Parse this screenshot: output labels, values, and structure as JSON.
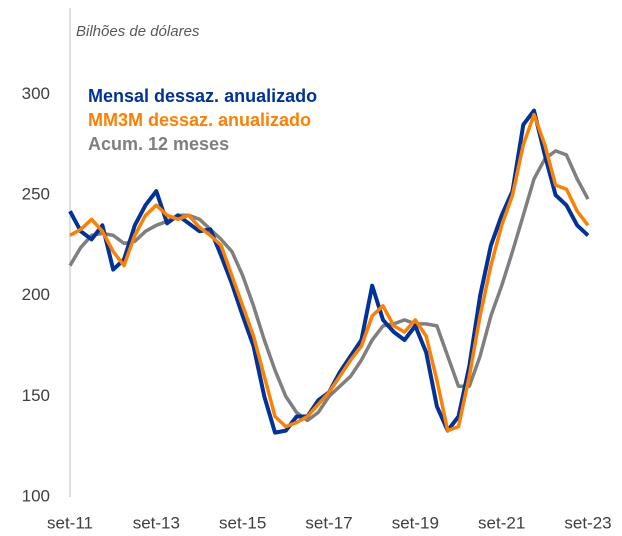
{
  "chart_data": {
    "type": "line",
    "subtitle": "Bilhões de dólares",
    "x": [
      2011.667,
      2011.917,
      2012.167,
      2012.417,
      2012.667,
      2012.917,
      2013.167,
      2013.417,
      2013.667,
      2013.917,
      2014.167,
      2014.417,
      2014.667,
      2014.917,
      2015.167,
      2015.417,
      2015.667,
      2015.917,
      2016.167,
      2016.417,
      2016.667,
      2016.917,
      2017.167,
      2017.417,
      2017.667,
      2017.917,
      2018.167,
      2018.417,
      2018.667,
      2018.917,
      2019.167,
      2019.417,
      2019.667,
      2019.917,
      2020.167,
      2020.417,
      2020.667,
      2020.917,
      2021.167,
      2021.417,
      2021.667,
      2021.917,
      2022.167,
      2022.417,
      2022.667,
      2022.917,
      2023.167,
      2023.417,
      2023.667
    ],
    "series": [
      {
        "name": "Mensal dessaz. anualizado",
        "color": "#003399",
        "values": [
          242,
          232,
          228,
          235,
          213,
          218,
          235,
          245,
          252,
          236,
          240,
          236,
          232,
          233,
          220,
          206,
          190,
          175,
          150,
          132,
          133,
          140,
          140,
          148,
          152,
          162,
          170,
          178,
          205,
          188,
          182,
          178,
          185,
          172,
          145,
          133,
          140,
          165,
          200,
          225,
          240,
          252,
          285,
          292,
          270,
          250,
          245,
          235,
          230
        ]
      },
      {
        "name": "MM3M dessaz. anualizado",
        "color": "#ff8000",
        "values": [
          230,
          233,
          238,
          232,
          222,
          215,
          230,
          240,
          245,
          240,
          238,
          240,
          234,
          230,
          225,
          210,
          195,
          180,
          160,
          140,
          135,
          137,
          140,
          146,
          152,
          160,
          168,
          175,
          190,
          195,
          185,
          182,
          188,
          180,
          158,
          133,
          135,
          160,
          190,
          215,
          235,
          250,
          275,
          290,
          275,
          255,
          253,
          242,
          235
        ]
      },
      {
        "name": "Acum. 12 meses",
        "color": "#7f7f7f",
        "values": [
          215,
          224,
          230,
          231,
          230,
          226,
          227,
          232,
          235,
          237,
          240,
          240,
          238,
          233,
          228,
          222,
          210,
          195,
          178,
          163,
          150,
          142,
          138,
          142,
          150,
          155,
          160,
          168,
          178,
          185,
          186,
          188,
          186,
          186,
          185,
          170,
          155,
          155,
          170,
          190,
          205,
          222,
          240,
          258,
          268,
          272,
          270,
          258,
          248
        ]
      }
    ],
    "xlim": [
      2011.667,
      2023.667
    ],
    "xticks": [
      {
        "value": 2011.667,
        "label": "set-11"
      },
      {
        "value": 2013.667,
        "label": "set-13"
      },
      {
        "value": 2015.667,
        "label": "set-15"
      },
      {
        "value": 2017.667,
        "label": "set-17"
      },
      {
        "value": 2019.667,
        "label": "set-19"
      },
      {
        "value": 2021.667,
        "label": "set-21"
      },
      {
        "value": 2023.667,
        "label": "set-23"
      }
    ],
    "ylim": [
      100,
      340
    ],
    "yticks": [
      100,
      150,
      200,
      250,
      300
    ],
    "grid": false,
    "legend": "top-left"
  }
}
